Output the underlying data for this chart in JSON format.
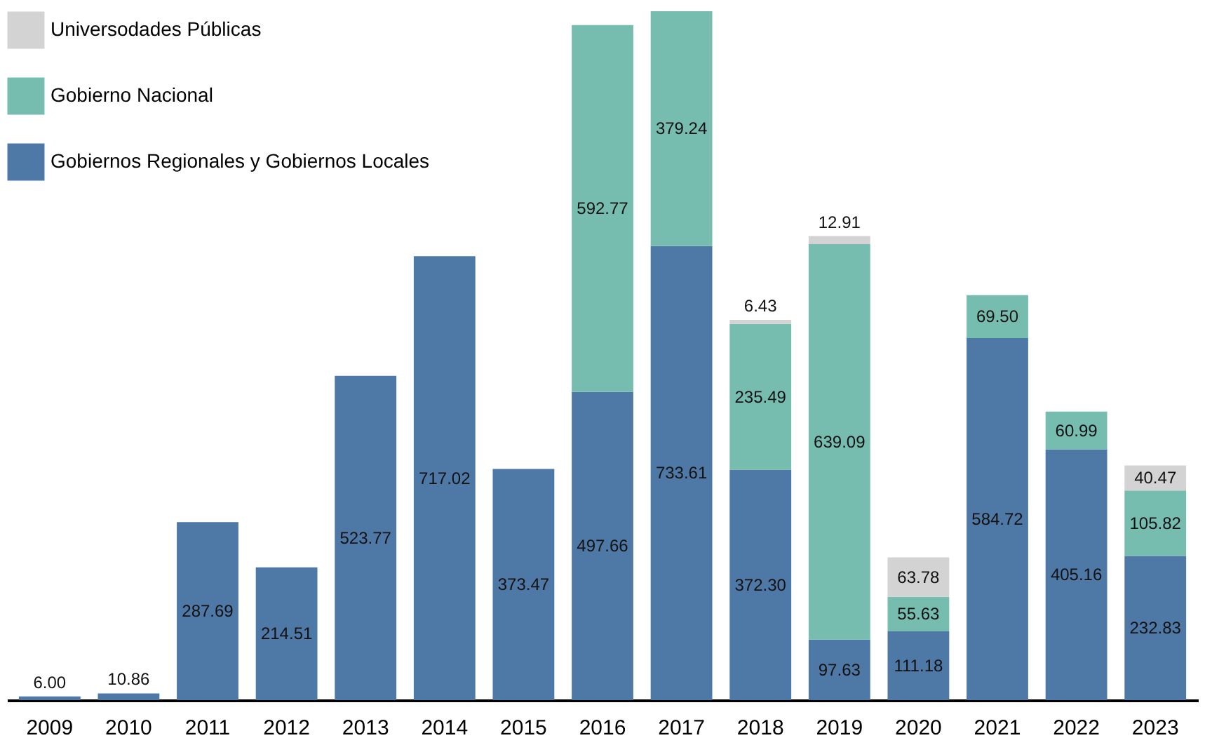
{
  "chart_data": {
    "type": "bar",
    "stacked": true,
    "legend": "top left",
    "grid": false,
    "tick_labels": "x",
    "categories": [
      "2009",
      "2010",
      "2011",
      "2012",
      "2013",
      "2014",
      "2015",
      "2016",
      "2017",
      "2018",
      "2019",
      "2020",
      "2021",
      "2022",
      "2023"
    ],
    "series": [
      {
        "name": "Gobiernos Regionales y Gobiernos Locales",
        "color": "#4e79a7",
        "values": [
          6.0,
          10.86,
          287.69,
          214.51,
          523.77,
          717.02,
          373.47,
          497.66,
          733.61,
          372.3,
          97.63,
          111.18,
          584.72,
          405.16,
          232.83
        ],
        "value_labels": [
          "6.00",
          "10.86",
          "287.69",
          "214.51",
          "523.77",
          "717.02",
          "373.47",
          "497.66",
          "733.61",
          "372.30",
          "97.63",
          "111.18",
          "584.72",
          "405.16",
          "232.83"
        ]
      },
      {
        "name": "Gobierno Nacional",
        "color": "#76bdb0",
        "values": [
          null,
          null,
          null,
          null,
          null,
          null,
          null,
          592.77,
          379.24,
          235.49,
          639.09,
          55.63,
          69.5,
          60.99,
          105.82
        ],
        "value_labels": [
          null,
          null,
          null,
          null,
          null,
          null,
          null,
          "592.77",
          "379.24",
          "235.49",
          "639.09",
          "55.63",
          "69.50",
          "60.99",
          "105.82"
        ]
      },
      {
        "name": "Universodades Públicas",
        "color": "#d3d3d3",
        "values": [
          null,
          null,
          null,
          null,
          null,
          null,
          null,
          null,
          null,
          6.43,
          12.91,
          63.78,
          null,
          null,
          40.47
        ],
        "value_labels": [
          null,
          null,
          null,
          null,
          null,
          null,
          null,
          null,
          null,
          "6.43",
          "12.91",
          "63.78",
          null,
          null,
          "40.47"
        ]
      }
    ]
  }
}
